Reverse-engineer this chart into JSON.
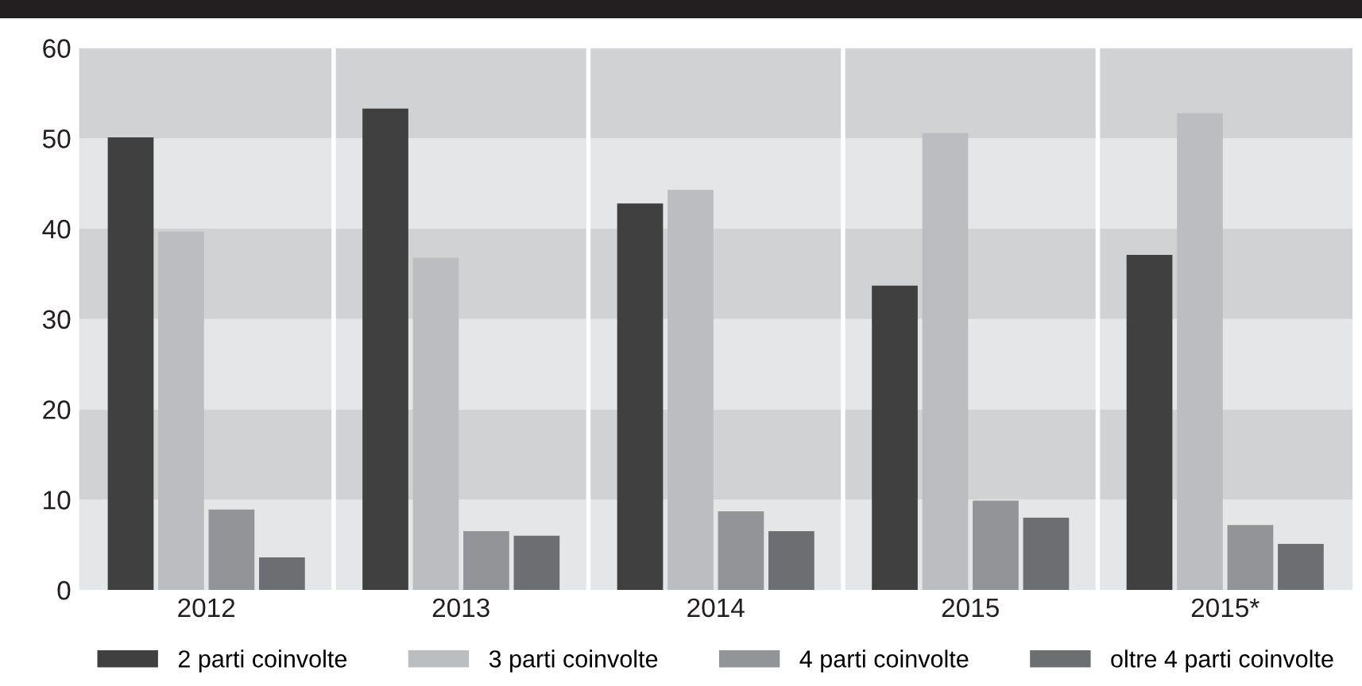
{
  "chart_data": {
    "type": "bar",
    "categories": [
      "2012",
      "2013",
      "2014",
      "2015",
      "2015*"
    ],
    "series": [
      {
        "name": "2 parti coinvolte",
        "color": "#404040",
        "values": [
          50.1,
          53.3,
          42.8,
          33.7,
          37.1
        ]
      },
      {
        "name": "3 parti coinvolte",
        "color": "#bcbdc1",
        "values": [
          39.7,
          36.8,
          44.3,
          50.6,
          52.8
        ]
      },
      {
        "name": "4 parti coinvolte",
        "color": "#939497",
        "values": [
          8.9,
          6.5,
          8.7,
          9.9,
          7.2
        ]
      },
      {
        "name": "oltre 4 parti coinvolte",
        "color": "#6d6e71",
        "values": [
          3.6,
          6.0,
          6.5,
          8.0,
          5.1
        ]
      }
    ],
    "ylim": [
      0,
      60
    ],
    "yticks": [
      0,
      10,
      20,
      30,
      40,
      50,
      60
    ],
    "legend": "bottom"
  }
}
